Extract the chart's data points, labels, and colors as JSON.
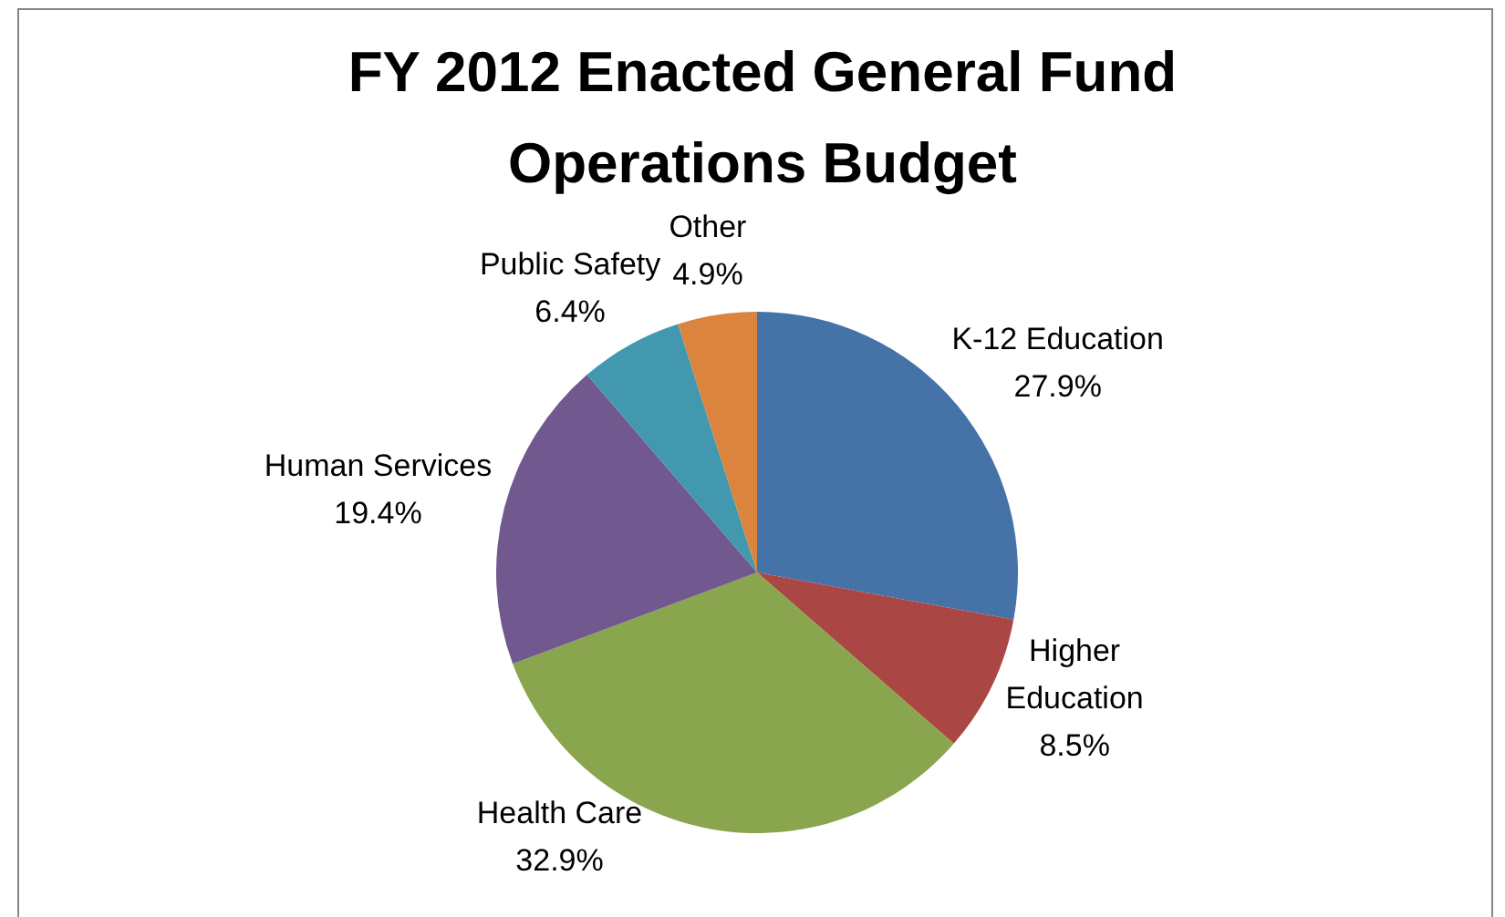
{
  "chart_data": {
    "type": "pie",
    "title": "FY 2012 Enacted General Fund Operations Budget",
    "categories": [
      "K-12 Education",
      "Higher Education",
      "Health Care",
      "Human Services",
      "Public Safety",
      "Other"
    ],
    "values": [
      27.9,
      8.5,
      32.9,
      19.4,
      6.4,
      4.9
    ],
    "colors": [
      "#4572a7",
      "#aa4643",
      "#89a54e",
      "#71588f",
      "#4198af",
      "#db843d"
    ],
    "value_labels": [
      "27.9%",
      "8.5%",
      "32.9%",
      "19.4%",
      "6.4%",
      "4.9%"
    ]
  }
}
